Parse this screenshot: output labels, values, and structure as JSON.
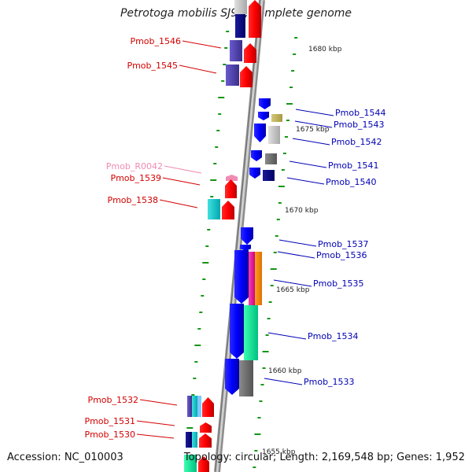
{
  "title": "Petrotoga mobilis SJ95, complete genome",
  "footer": {
    "accession": "Accession: NC_010003",
    "topology": "Topology: circular; Length: 2,169,548 bp; Genes: 1,952"
  },
  "scale_labels": [
    "1680 kbp",
    "1675 kbp",
    "1670 kbp",
    "1665 kbp",
    "1660 kbp",
    "1655 kbp"
  ],
  "colors": {
    "forward_label": "#d40000",
    "reverse_label": "#0000b4",
    "rna_label": "#f08cb4",
    "backbone": "#8c8c8c",
    "tick": "#149614"
  },
  "genes": [
    {
      "id": "Pmob_1546",
      "strand": "forward"
    },
    {
      "id": "Pmob_1545",
      "strand": "forward"
    },
    {
      "id": "Pmob_1544",
      "strand": "reverse"
    },
    {
      "id": "Pmob_1543",
      "strand": "reverse"
    },
    {
      "id": "Pmob_1542",
      "strand": "reverse"
    },
    {
      "id": "Pmob_R0042",
      "strand": "rna"
    },
    {
      "id": "Pmob_1539",
      "strand": "forward"
    },
    {
      "id": "Pmob_1541",
      "strand": "reverse"
    },
    {
      "id": "Pmob_1540",
      "strand": "reverse"
    },
    {
      "id": "Pmob_1538",
      "strand": "forward"
    },
    {
      "id": "Pmob_1537",
      "strand": "reverse"
    },
    {
      "id": "Pmob_1536",
      "strand": "reverse"
    },
    {
      "id": "Pmob_1535",
      "strand": "reverse"
    },
    {
      "id": "Pmob_1534",
      "strand": "reverse"
    },
    {
      "id": "Pmob_1533",
      "strand": "reverse"
    },
    {
      "id": "Pmob_1532",
      "strand": "forward"
    },
    {
      "id": "Pmob_1531",
      "strand": "forward"
    },
    {
      "id": "Pmob_1530",
      "strand": "forward"
    }
  ]
}
